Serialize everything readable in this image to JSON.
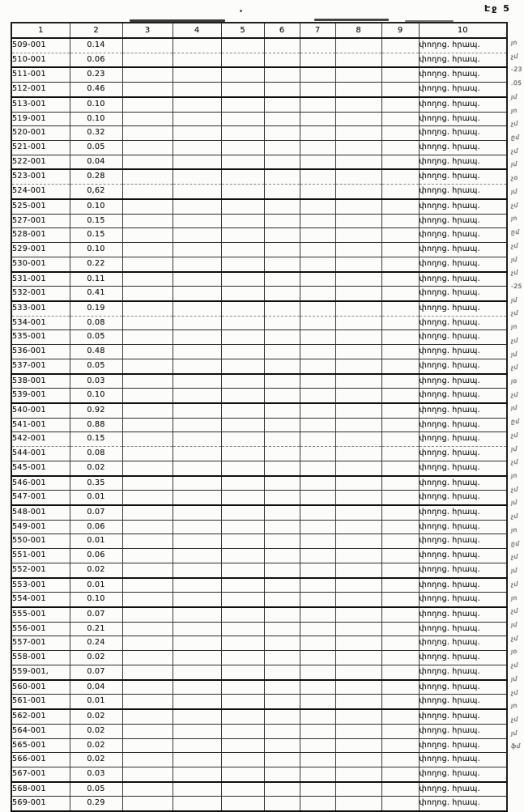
{
  "page": {
    "label": "Էջ 5"
  },
  "colors": {
    "paper": "#fcfcfa",
    "ink": "#1b1b1b",
    "border": "#2f2f2f",
    "margin_mark": "#6f6f6f"
  },
  "table": {
    "headers": [
      "1",
      "2",
      "3",
      "4",
      "5",
      "6",
      "7",
      "8",
      "9",
      "10"
    ],
    "note_text": "փողոց. հրապ.",
    "rows": [
      {
        "id": "509-001",
        "value": "0.14"
      },
      {
        "id": "510-001",
        "value": "0.06"
      },
      {
        "id": "511-001",
        "value": "0.23"
      },
      {
        "id": "512-001",
        "value": "0.46"
      },
      {
        "id": "513-001",
        "value": "0.10"
      },
      {
        "id": "519-001",
        "value": "0.10"
      },
      {
        "id": "520-001",
        "value": "0.32"
      },
      {
        "id": "521-001",
        "value": "0.05"
      },
      {
        "id": "522-001",
        "value": "0.04"
      },
      {
        "id": "523-001",
        "value": "0.28"
      },
      {
        "id": "524-001",
        "value": "0,62"
      },
      {
        "id": "525-001",
        "value": "0.10"
      },
      {
        "id": "527-001",
        "value": "0.15"
      },
      {
        "id": "528-001",
        "value": "0.15"
      },
      {
        "id": "529-001",
        "value": "0.10"
      },
      {
        "id": "530-001",
        "value": "0.22"
      },
      {
        "id": "531-001",
        "value": "0.11"
      },
      {
        "id": "532-001",
        "value": "0.41"
      },
      {
        "id": "533-001",
        "value": "0.19"
      },
      {
        "id": "534-001",
        "value": "0.08"
      },
      {
        "id": "535-001",
        "value": "0.05"
      },
      {
        "id": "536-001",
        "value": "0.48"
      },
      {
        "id": "537-001",
        "value": "0.05"
      },
      {
        "id": "538-001",
        "value": "0.03"
      },
      {
        "id": "539-001",
        "value": "0.10"
      },
      {
        "id": "540-001",
        "value": "0.92"
      },
      {
        "id": "541-001",
        "value": "0.88"
      },
      {
        "id": "542-001",
        "value": "0.15"
      },
      {
        "id": "544-001",
        "value": "0.08"
      },
      {
        "id": "545-001",
        "value": "0.02"
      },
      {
        "id": "546-001",
        "value": "0.35"
      },
      {
        "id": "547-001",
        "value": "0.01"
      },
      {
        "id": "548-001",
        "value": "0.07"
      },
      {
        "id": "549-001",
        "value": "0.06"
      },
      {
        "id": "550-001",
        "value": "0.01"
      },
      {
        "id": "551-001",
        "value": "0.06"
      },
      {
        "id": "552-001",
        "value": "0.02"
      },
      {
        "id": "553-001",
        "value": "0.01"
      },
      {
        "id": "554-001",
        "value": "0.10"
      },
      {
        "id": "555-001",
        "value": "0.07"
      },
      {
        "id": "556-001",
        "value": "0.21"
      },
      {
        "id": "557-001",
        "value": "0.24"
      },
      {
        "id": "558-001",
        "value": "0.02"
      },
      {
        "id": "559-001,",
        "value": "0.07"
      },
      {
        "id": "560-001",
        "value": "0.04"
      },
      {
        "id": "561-001",
        "value": "0.01"
      },
      {
        "id": "562-001",
        "value": "0.02"
      },
      {
        "id": "564-001",
        "value": "0.02"
      },
      {
        "id": "565-001",
        "value": "0.02"
      },
      {
        "id": "566-001",
        "value": "0.02"
      },
      {
        "id": "567-001",
        "value": "0.03"
      },
      {
        "id": "568-001",
        "value": "0.05"
      },
      {
        "id": "569-001",
        "value": "0.29"
      }
    ],
    "margin_marks": [
      "յո",
      "չմ",
      "-23",
      ".05",
      "յմ",
      "յո",
      "չմ",
      "ըմ",
      "չմ",
      "յմ",
      "չօ",
      "յմ",
      "չմ",
      "յո",
      "ըմ",
      "չմ",
      "յմ",
      "չմ",
      "-25",
      "յմ",
      "չմ",
      "յո",
      "չմ",
      "յմ",
      "չմ",
      "յօ",
      "չմ",
      "յմ",
      "ըմ",
      "չմ",
      "յմ",
      "չմ",
      "յո",
      "չմ",
      "յմ",
      "չմ",
      "յո",
      "ըմ",
      "չմ",
      "յմ",
      "չմ",
      "յո",
      "չմ",
      "յմ",
      "չմ",
      "յօ",
      "չմ",
      "յմ",
      "չմ",
      "յո",
      "չմ",
      "յմ",
      "ֆմ"
    ]
  }
}
